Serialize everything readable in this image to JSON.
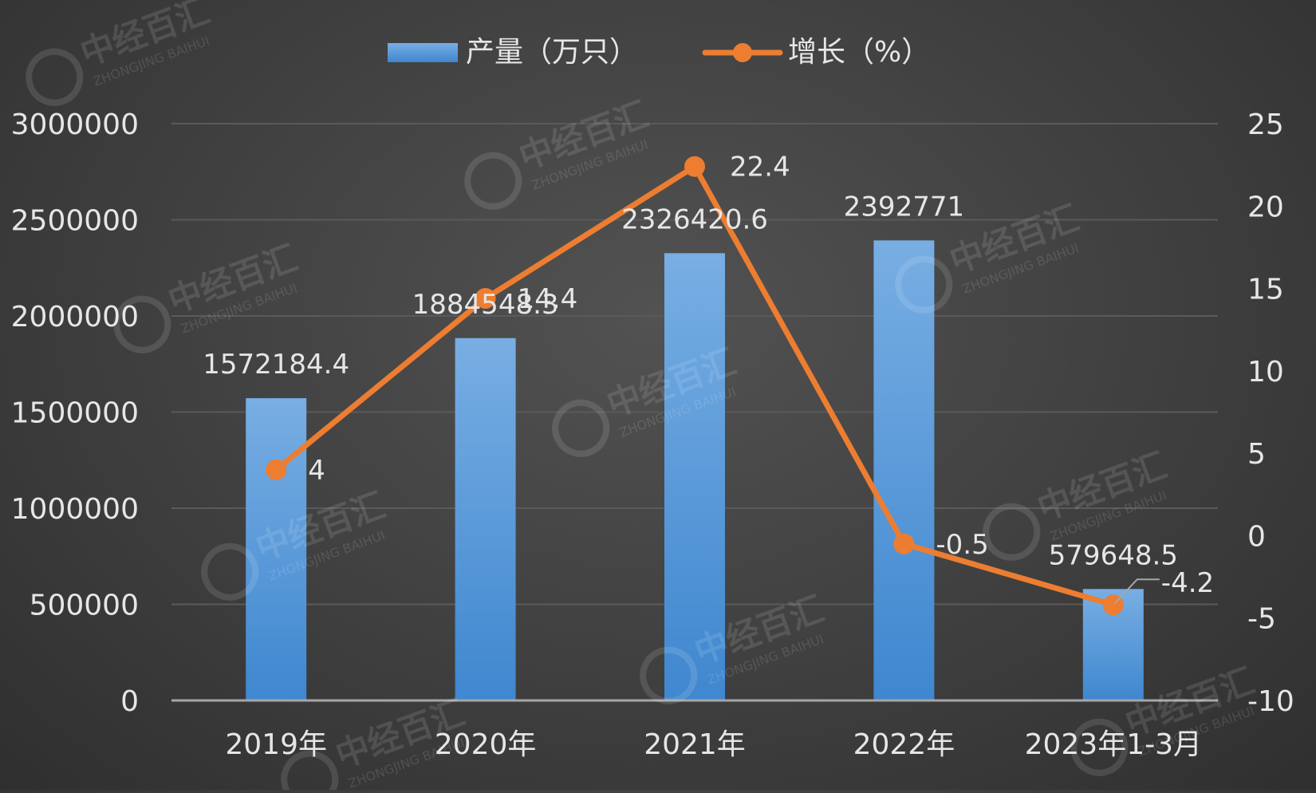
{
  "colors": {
    "bar": "#5b9bd5",
    "bar_light": "#7db2e6",
    "line": "#ed7d31",
    "grid": "#5a5a5a",
    "axis": "#a6a6a6",
    "text": "#e6e6e6"
  },
  "chart_data": {
    "type": "bar",
    "categories": [
      "2019年",
      "2020年",
      "2021年",
      "2022年",
      "2023年1-3月"
    ],
    "series": [
      {
        "name": "产量（万只）",
        "type": "bar",
        "axis": "left",
        "values": [
          1572184.4,
          1884548.3,
          2326420.6,
          2392771,
          579648.5
        ],
        "labels": [
          "1572184.4",
          "1884548.3",
          "2326420.6",
          "2392771",
          "579648.5"
        ]
      },
      {
        "name": "增长（%）",
        "type": "line",
        "axis": "right",
        "values": [
          4,
          14.4,
          22.4,
          -0.5,
          -4.2
        ],
        "labels": [
          "4",
          "14.4",
          "22.4",
          "-0.5",
          "-4.2"
        ]
      }
    ],
    "y_left": {
      "min": 0,
      "max": 3000000,
      "ticks": [
        "0",
        "500000",
        "1000000",
        "1500000",
        "2000000",
        "2500000",
        "3000000"
      ]
    },
    "y_right": {
      "min": -10,
      "max": 25,
      "ticks": [
        "-10",
        "-5",
        "0",
        "5",
        "10",
        "15",
        "20",
        "25"
      ]
    },
    "grid": true,
    "legend": "top-center"
  },
  "watermark": "中经百汇 ZHONGJING BAIHUI"
}
